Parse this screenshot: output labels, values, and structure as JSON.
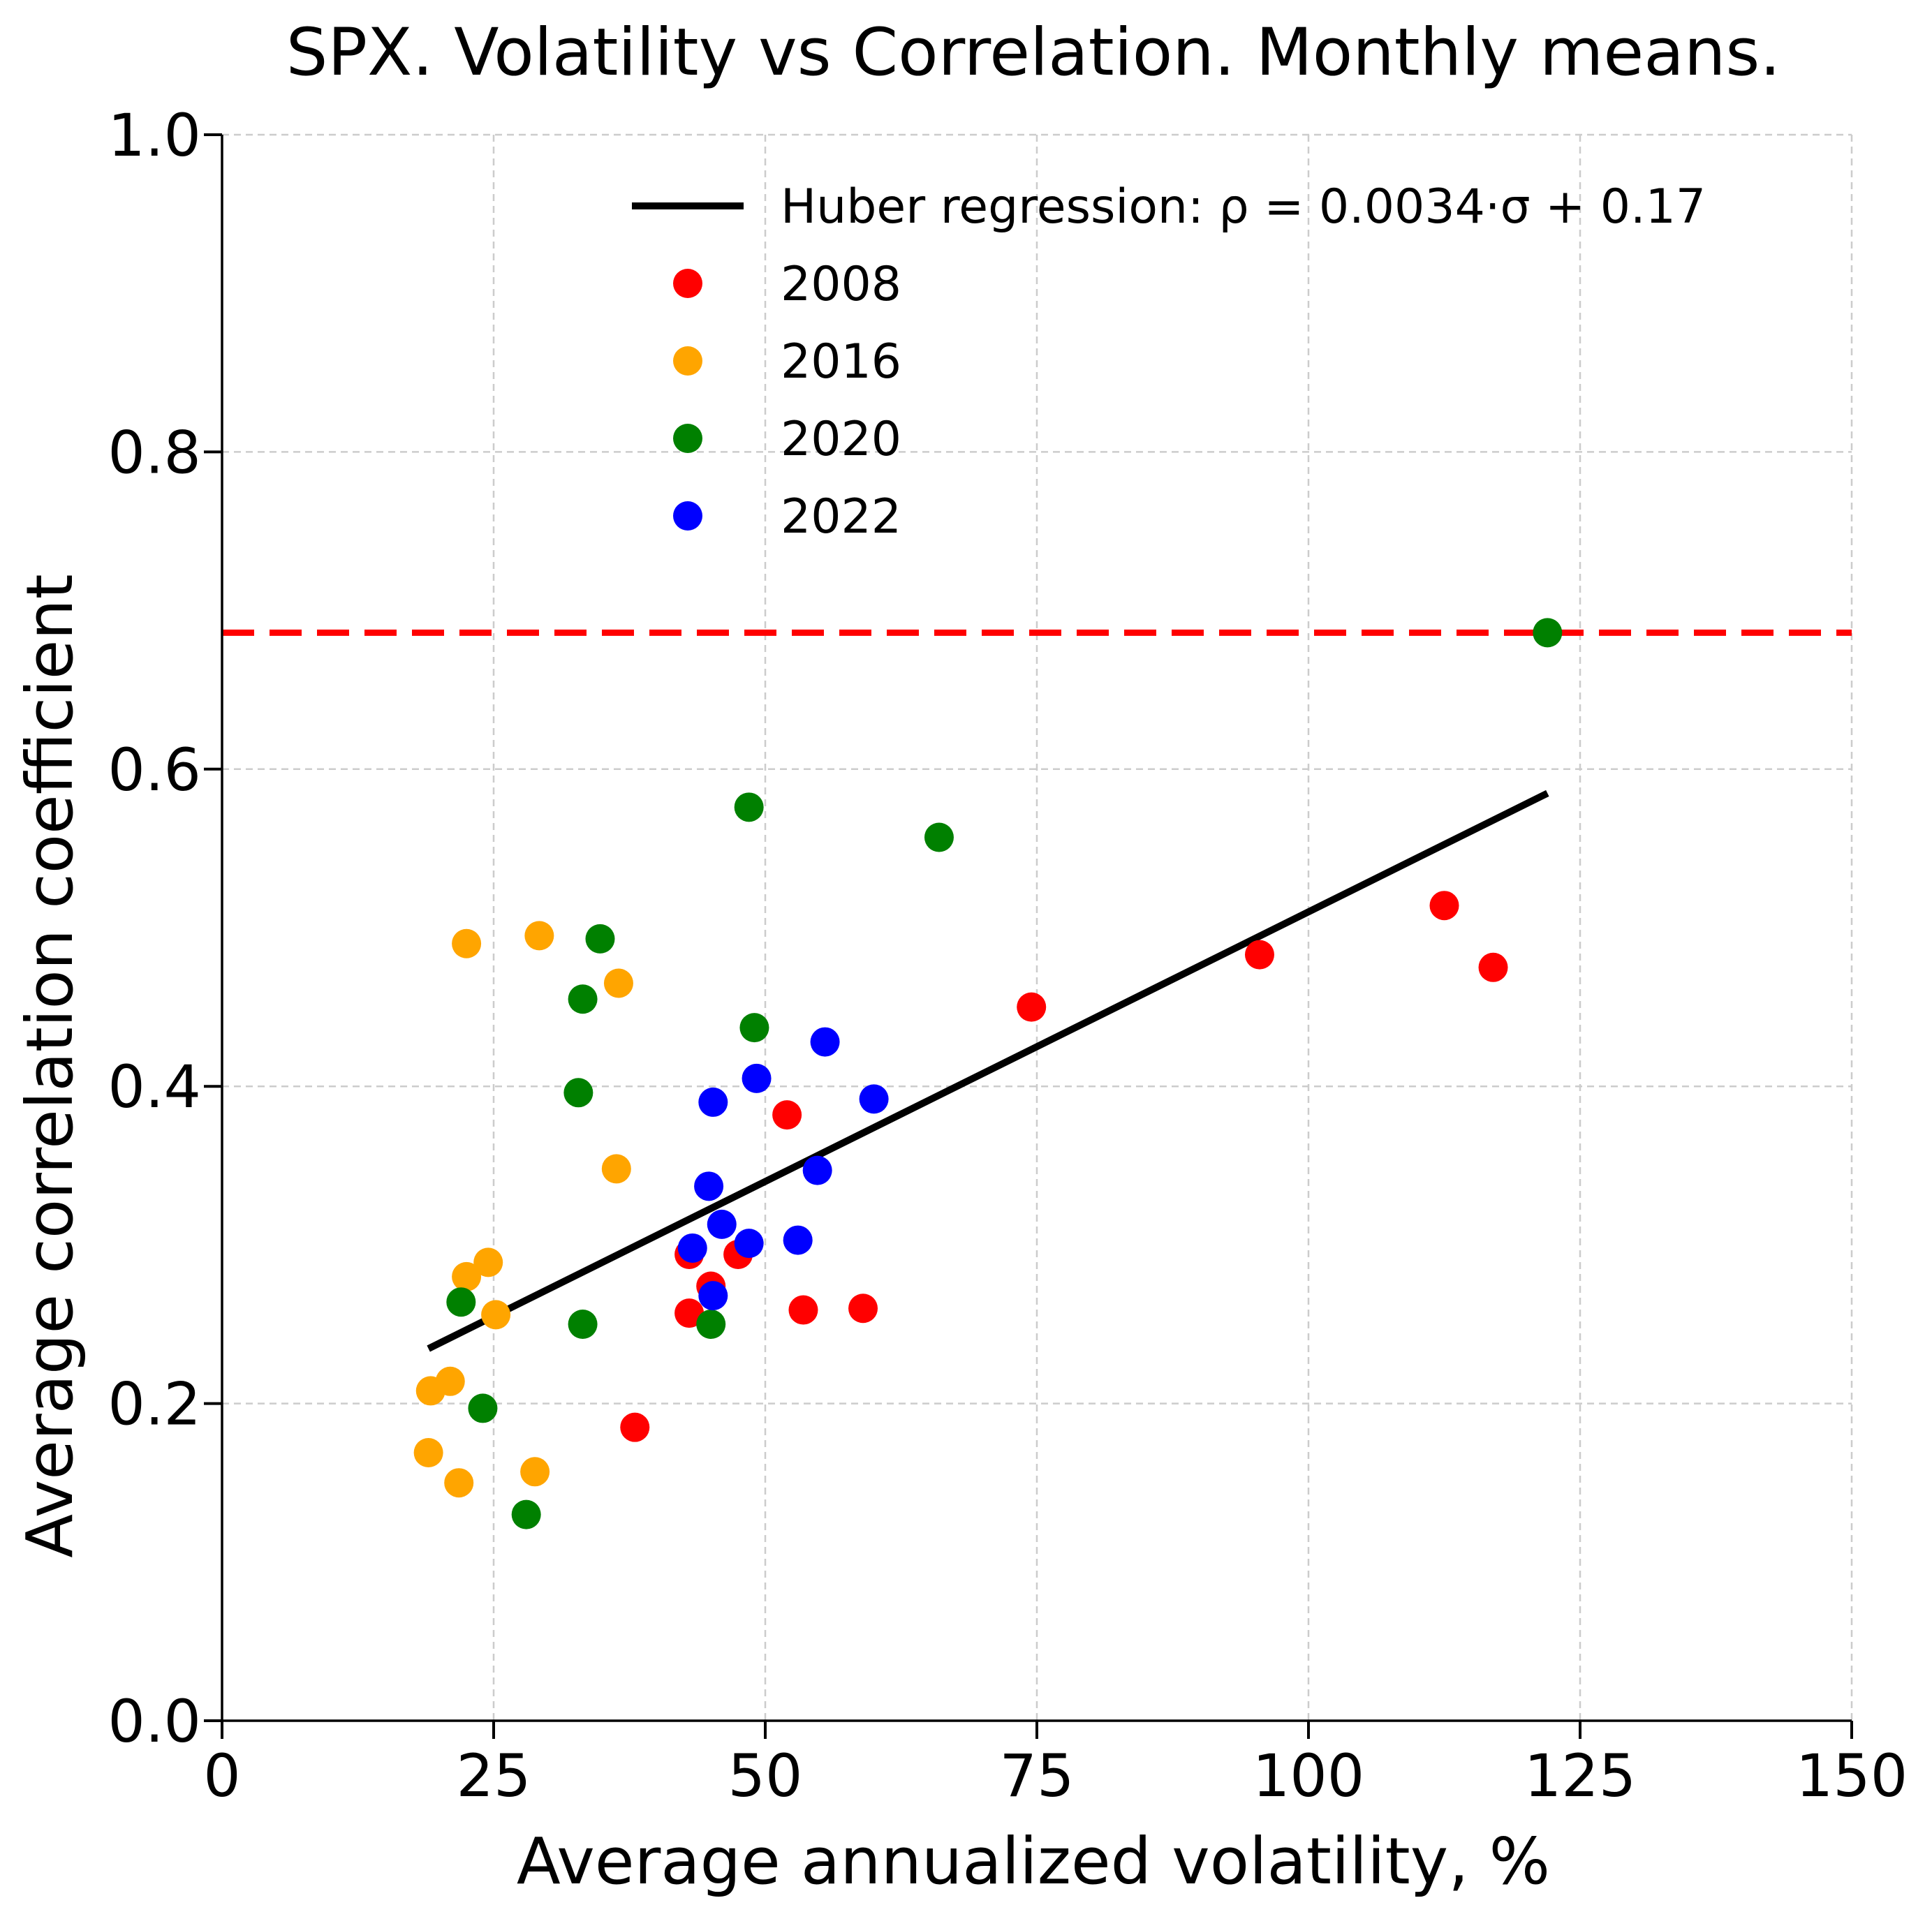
{
  "chart_data": {
    "type": "scatter",
    "title": "SPX. Volatility vs Correlation. Monthly means.",
    "xlabel": "Average annualized volatility, %",
    "ylabel": "Average correlation coefficient",
    "xlim": [
      0,
      150
    ],
    "ylim": [
      0,
      1.0
    ],
    "xticks": [
      "0",
      "25",
      "50",
      "75",
      "100",
      "125",
      "150"
    ],
    "yticks": [
      "0.0",
      "0.2",
      "0.4",
      "0.6",
      "0.8",
      "1.0"
    ],
    "grid": true,
    "legend_position": "top-right",
    "regression": {
      "label": "Huber regression: ρ = 0.0034·σ + 0.17",
      "slope": 0.0034,
      "intercept": 0.17,
      "x_range": [
        19,
        122
      ],
      "color": "#000000"
    },
    "reference_line": {
      "y": 0.686,
      "color": "#ff0000",
      "style": "dashed"
    },
    "series": [
      {
        "name": "2008",
        "color": "#ff0000",
        "points": [
          [
            38,
            0.185
          ],
          [
            43,
            0.257
          ],
          [
            43,
            0.294
          ],
          [
            45,
            0.274
          ],
          [
            47.5,
            0.294
          ],
          [
            52,
            0.382
          ],
          [
            53.5,
            0.259
          ],
          [
            59,
            0.26
          ],
          [
            74.5,
            0.45
          ],
          [
            95.5,
            0.483
          ],
          [
            112.5,
            0.514
          ],
          [
            117,
            0.475
          ]
        ]
      },
      {
        "name": "2016",
        "color": "#ffa500",
        "points": [
          [
            19,
            0.169
          ],
          [
            19.2,
            0.208
          ],
          [
            21,
            0.214
          ],
          [
            21.8,
            0.15
          ],
          [
            22.5,
            0.28
          ],
          [
            24.5,
            0.289
          ],
          [
            25.2,
            0.256
          ],
          [
            28.8,
            0.157
          ],
          [
            36.3,
            0.348
          ],
          [
            22.5,
            0.49
          ],
          [
            29.2,
            0.495
          ],
          [
            36.5,
            0.465
          ]
        ]
      },
      {
        "name": "2020",
        "color": "#008000",
        "points": [
          [
            22,
            0.264
          ],
          [
            24,
            0.197
          ],
          [
            28,
            0.13
          ],
          [
            32.8,
            0.396
          ],
          [
            33.2,
            0.455
          ],
          [
            33.2,
            0.25
          ],
          [
            34.8,
            0.493
          ],
          [
            45,
            0.25
          ],
          [
            48.5,
            0.576
          ],
          [
            49,
            0.437
          ],
          [
            66,
            0.557
          ],
          [
            122,
            0.686
          ]
        ]
      },
      {
        "name": "2022",
        "color": "#0000ff",
        "points": [
          [
            43.3,
            0.298
          ],
          [
            44.8,
            0.337
          ],
          [
            45.2,
            0.39
          ],
          [
            45.2,
            0.268
          ],
          [
            46,
            0.313
          ],
          [
            48.5,
            0.301
          ],
          [
            49.2,
            0.405
          ],
          [
            53,
            0.303
          ],
          [
            54.8,
            0.347
          ],
          [
            55.5,
            0.428
          ],
          [
            60,
            0.392
          ]
        ]
      }
    ]
  }
}
